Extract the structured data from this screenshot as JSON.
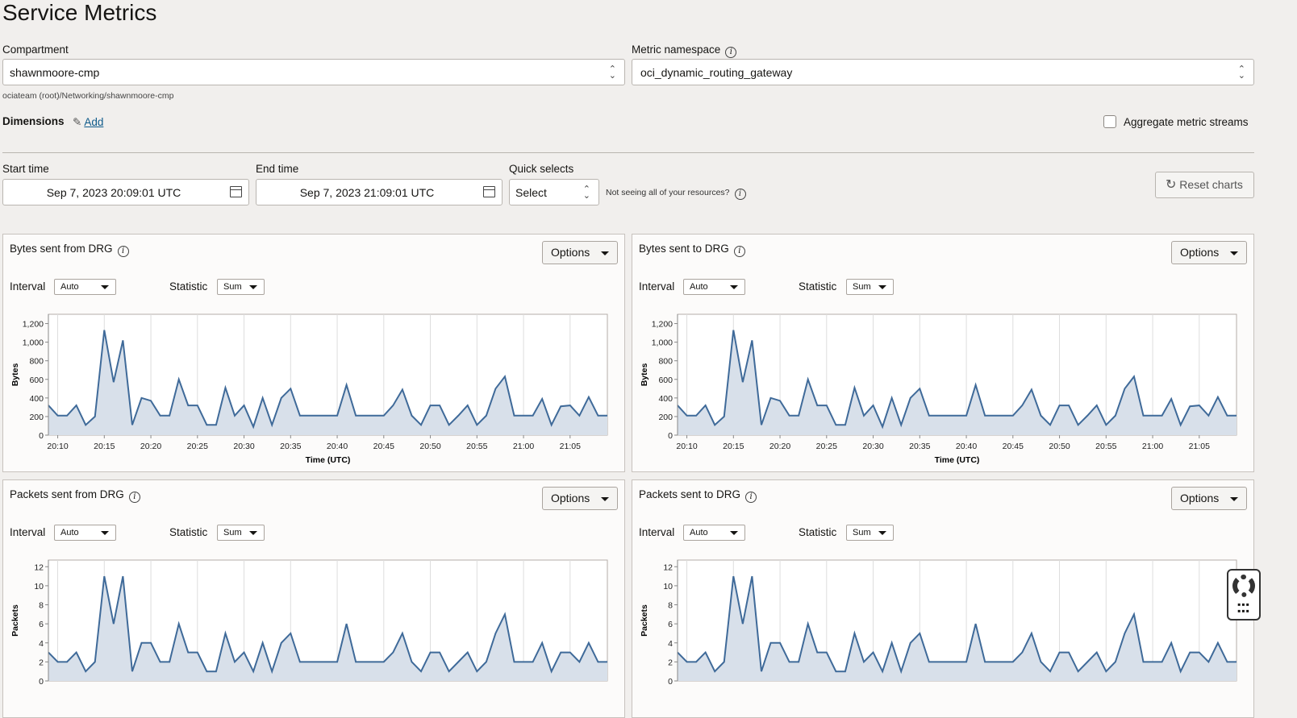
{
  "page_title": "Service Metrics",
  "compartment": {
    "label": "Compartment",
    "value": "shawnmoore-cmp",
    "path": "ociateam (root)/Networking/shawnmoore-cmp"
  },
  "namespace": {
    "label": "Metric namespace",
    "value": "oci_dynamic_routing_gateway"
  },
  "dimensions": {
    "label": "Dimensions",
    "add_link": "Add"
  },
  "aggregate": {
    "label": "Aggregate metric streams",
    "checked": false
  },
  "start_time": {
    "label": "Start time",
    "value": "Sep 7, 2023 20:09:01 UTC"
  },
  "end_time": {
    "label": "End time",
    "value": "Sep 7, 2023 21:09:01 UTC"
  },
  "quick_selects": {
    "label": "Quick selects",
    "value": "Select"
  },
  "resources_hint": "Not seeing all of your resources?",
  "reset_label": "Reset charts",
  "panel_labels": {
    "options": "Options",
    "interval": "Interval",
    "statistic": "Statistic",
    "interval_value": "Auto",
    "statistic_value": "Sum"
  },
  "chart_data": [
    {
      "type": "area",
      "title": "Bytes sent from DRG",
      "xlabel": "Time (UTC)",
      "ylabel": "Bytes",
      "ylim": [
        0,
        1300
      ],
      "yticks": [
        "0",
        "200",
        "400",
        "600",
        "800",
        "1,000",
        "1,200"
      ],
      "ytick_values": [
        0,
        200,
        400,
        600,
        800,
        1000,
        1200
      ],
      "xticks": [
        "20:10",
        "20:15",
        "20:20",
        "20:25",
        "20:30",
        "20:35",
        "20:40",
        "20:45",
        "20:50",
        "20:55",
        "21:00",
        "21:05"
      ],
      "x_start": "20:09",
      "x_step_minutes": 1,
      "grid": true,
      "color": "#3f6a99",
      "values": [
        320,
        210,
        210,
        320,
        110,
        200,
        1130,
        570,
        1020,
        110,
        400,
        370,
        210,
        210,
        600,
        320,
        320,
        110,
        110,
        510,
        210,
        320,
        90,
        400,
        110,
        400,
        500,
        210,
        210,
        210,
        210,
        210,
        540,
        210,
        210,
        210,
        210,
        320,
        490,
        210,
        110,
        320,
        320,
        110,
        210,
        320,
        110,
        210,
        500,
        630,
        210,
        210,
        210,
        390,
        110,
        310,
        320,
        210,
        410,
        210,
        210
      ]
    },
    {
      "type": "area",
      "title": "Bytes sent to DRG",
      "xlabel": "Time (UTC)",
      "ylabel": "Bytes",
      "ylim": [
        0,
        1300
      ],
      "yticks": [
        "0",
        "200",
        "400",
        "600",
        "800",
        "1,000",
        "1,200"
      ],
      "ytick_values": [
        0,
        200,
        400,
        600,
        800,
        1000,
        1200
      ],
      "xticks": [
        "20:10",
        "20:15",
        "20:20",
        "20:25",
        "20:30",
        "20:35",
        "20:40",
        "20:45",
        "20:50",
        "20:55",
        "21:00",
        "21:05"
      ],
      "x_start": "20:09",
      "x_step_minutes": 1,
      "grid": true,
      "color": "#3f6a99",
      "values": [
        320,
        210,
        210,
        320,
        110,
        200,
        1130,
        570,
        1020,
        110,
        400,
        370,
        210,
        210,
        600,
        320,
        320,
        110,
        110,
        510,
        210,
        320,
        90,
        400,
        110,
        400,
        500,
        210,
        210,
        210,
        210,
        210,
        540,
        210,
        210,
        210,
        210,
        320,
        490,
        210,
        110,
        320,
        320,
        110,
        210,
        320,
        110,
        210,
        500,
        630,
        210,
        210,
        210,
        390,
        110,
        310,
        320,
        210,
        410,
        210,
        210
      ]
    },
    {
      "type": "area",
      "title": "Packets sent from DRG",
      "xlabel": "",
      "ylabel": "Packets",
      "ylim": [
        0,
        12.7
      ],
      "yticks": [
        "0",
        "2",
        "4",
        "6",
        "8",
        "10",
        "12"
      ],
      "ytick_values": [
        0,
        2,
        4,
        6,
        8,
        10,
        12
      ],
      "xticks": [],
      "x_start": "20:09",
      "x_step_minutes": 1,
      "grid": true,
      "color": "#3f6a99",
      "values": [
        3,
        2,
        2,
        3,
        1,
        2,
        11,
        6,
        11,
        1,
        4,
        4,
        2,
        2,
        6,
        3,
        3,
        1,
        1,
        5,
        2,
        3,
        1,
        4,
        1,
        4,
        5,
        2,
        2,
        2,
        2,
        2,
        6,
        2,
        2,
        2,
        2,
        3,
        5,
        2,
        1,
        3,
        3,
        1,
        2,
        3,
        1,
        2,
        5,
        7,
        2,
        2,
        2,
        4,
        1,
        3,
        3,
        2,
        4,
        2,
        2
      ]
    },
    {
      "type": "area",
      "title": "Packets sent to DRG",
      "xlabel": "",
      "ylabel": "Packets",
      "ylim": [
        0,
        12.7
      ],
      "yticks": [
        "0",
        "2",
        "4",
        "6",
        "8",
        "10",
        "12"
      ],
      "ytick_values": [
        0,
        2,
        4,
        6,
        8,
        10,
        12
      ],
      "xticks": [],
      "x_start": "20:09",
      "x_step_minutes": 1,
      "grid": true,
      "color": "#3f6a99",
      "values": [
        3,
        2,
        2,
        3,
        1,
        2,
        11,
        6,
        11,
        1,
        4,
        4,
        2,
        2,
        6,
        3,
        3,
        1,
        1,
        5,
        2,
        3,
        1,
        4,
        1,
        4,
        5,
        2,
        2,
        2,
        2,
        2,
        6,
        2,
        2,
        2,
        2,
        3,
        5,
        2,
        1,
        3,
        3,
        1,
        2,
        3,
        1,
        2,
        5,
        7,
        2,
        2,
        2,
        4,
        1,
        3,
        3,
        2,
        4,
        2,
        2
      ]
    }
  ]
}
